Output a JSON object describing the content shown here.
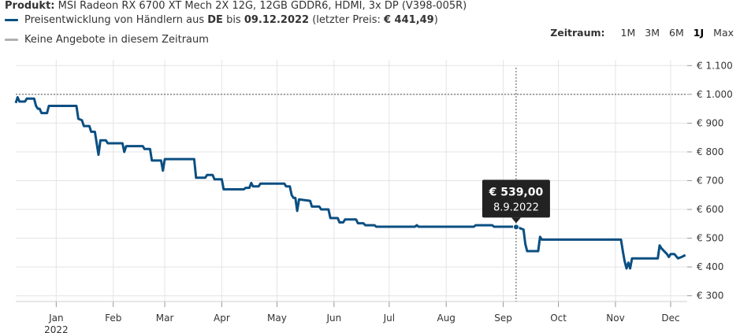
{
  "header": {
    "product_label": "Produkt:",
    "product_name": "MSI Radeon RX 6700 XT Mech 2X 12G, 12GB GDDR6, HDMI, 3x DP (V398-005R)"
  },
  "legend": {
    "series_prefix": "Preisentwicklung von Händlern aus",
    "series_country": "DE",
    "series_mid": "bis",
    "series_date": "09.12.2022",
    "series_paren_open": "(letzter Preis:",
    "series_last_price": "€ 441,49",
    "series_paren_close": ")",
    "series_color": "#0b4f82",
    "no_offers_label": "Keine Angebote in diesem Zeitraum",
    "no_offers_color": "#b0b0b0"
  },
  "range_selector": {
    "label": "Zeitraum:",
    "options": [
      "1M",
      "3M",
      "6M",
      "1J",
      "Max"
    ],
    "active": "1J"
  },
  "tooltip": {
    "price": "€ 539,00",
    "date": "8.9.2022"
  },
  "chart_data": {
    "type": "line",
    "title": "",
    "xlabel": "",
    "ylabel": "",
    "ylim": [
      280,
      1120
    ],
    "y_ticks": [
      {
        "value": 300,
        "label": "€ 300"
      },
      {
        "value": 400,
        "label": "€ 400"
      },
      {
        "value": 500,
        "label": "€ 500"
      },
      {
        "value": 600,
        "label": "€ 600"
      },
      {
        "value": 700,
        "label": "€ 700"
      },
      {
        "value": 800,
        "label": "€ 800"
      },
      {
        "value": 900,
        "label": "€ 900"
      },
      {
        "value": 1000,
        "label": "€ 1.000"
      },
      {
        "value": 1100,
        "label": "€ 1.100"
      }
    ],
    "x_range": [
      "2021-12-10",
      "2022-12-10"
    ],
    "x_ticks": [
      {
        "date": "2022-01-01",
        "label": "Jan",
        "sublabel": "2022"
      },
      {
        "date": "2022-02-01",
        "label": "Feb"
      },
      {
        "date": "2022-03-01",
        "label": "Mar"
      },
      {
        "date": "2022-04-01",
        "label": "Apr"
      },
      {
        "date": "2022-05-01",
        "label": "May"
      },
      {
        "date": "2022-06-01",
        "label": "Jun"
      },
      {
        "date": "2022-07-01",
        "label": "Jul"
      },
      {
        "date": "2022-08-01",
        "label": "Aug"
      },
      {
        "date": "2022-09-01",
        "label": "Sep"
      },
      {
        "date": "2022-10-01",
        "label": "Oct"
      },
      {
        "date": "2022-11-01",
        "label": "Nov"
      },
      {
        "date": "2022-12-01",
        "label": "Dec"
      }
    ],
    "grid": true,
    "reference_line": 1000,
    "crosshair_date": "2022-09-08",
    "highlight_point": {
      "date": "2022-09-08",
      "value": 539
    },
    "series": [
      {
        "color": "#0b4f82",
        "points": [
          [
            "2021-12-10",
            970
          ],
          [
            "2021-12-11",
            990
          ],
          [
            "2021-12-12",
            975
          ],
          [
            "2021-12-15",
            975
          ],
          [
            "2021-12-16",
            985
          ],
          [
            "2021-12-20",
            985
          ],
          [
            "2021-12-21",
            960
          ],
          [
            "2021-12-22",
            950
          ],
          [
            "2021-12-23",
            950
          ],
          [
            "2021-12-24",
            935
          ],
          [
            "2021-12-27",
            935
          ],
          [
            "2021-12-28",
            960
          ],
          [
            "2022-01-12",
            960
          ],
          [
            "2022-01-13",
            915
          ],
          [
            "2022-01-15",
            910
          ],
          [
            "2022-01-16",
            890
          ],
          [
            "2022-01-19",
            890
          ],
          [
            "2022-01-20",
            870
          ],
          [
            "2022-01-22",
            870
          ],
          [
            "2022-01-24",
            790
          ],
          [
            "2022-01-25",
            840
          ],
          [
            "2022-01-28",
            840
          ],
          [
            "2022-01-29",
            830
          ],
          [
            "2022-02-06",
            830
          ],
          [
            "2022-02-07",
            800
          ],
          [
            "2022-02-08",
            820
          ],
          [
            "2022-02-17",
            820
          ],
          [
            "2022-02-18",
            810
          ],
          [
            "2022-02-21",
            810
          ],
          [
            "2022-02-22",
            770
          ],
          [
            "2022-02-27",
            770
          ],
          [
            "2022-02-28",
            735
          ],
          [
            "2022-03-01",
            775
          ],
          [
            "2022-03-17",
            775
          ],
          [
            "2022-03-18",
            710
          ],
          [
            "2022-03-23",
            710
          ],
          [
            "2022-03-24",
            720
          ],
          [
            "2022-03-27",
            720
          ],
          [
            "2022-03-28",
            705
          ],
          [
            "2022-04-01",
            705
          ],
          [
            "2022-04-02",
            670
          ],
          [
            "2022-04-13",
            670
          ],
          [
            "2022-04-14",
            675
          ],
          [
            "2022-04-16",
            675
          ],
          [
            "2022-04-17",
            692
          ],
          [
            "2022-04-18",
            680
          ],
          [
            "2022-04-21",
            680
          ],
          [
            "2022-04-22",
            690
          ],
          [
            "2022-05-05",
            690
          ],
          [
            "2022-05-06",
            680
          ],
          [
            "2022-05-08",
            680
          ],
          [
            "2022-05-09",
            650
          ],
          [
            "2022-05-10",
            640
          ],
          [
            "2022-05-11",
            640
          ],
          [
            "2022-05-12",
            595
          ],
          [
            "2022-05-13",
            635
          ],
          [
            "2022-05-19",
            630
          ],
          [
            "2022-05-20",
            610
          ],
          [
            "2022-05-24",
            610
          ],
          [
            "2022-05-25",
            600
          ],
          [
            "2022-05-29",
            600
          ],
          [
            "2022-05-30",
            570
          ],
          [
            "2022-06-03",
            570
          ],
          [
            "2022-06-04",
            555
          ],
          [
            "2022-06-06",
            555
          ],
          [
            "2022-06-07",
            565
          ],
          [
            "2022-06-13",
            565
          ],
          [
            "2022-06-14",
            552
          ],
          [
            "2022-06-17",
            552
          ],
          [
            "2022-06-18",
            545
          ],
          [
            "2022-06-23",
            545
          ],
          [
            "2022-06-24",
            540
          ],
          [
            "2022-07-15",
            540
          ],
          [
            "2022-07-16",
            545
          ],
          [
            "2022-07-17",
            540
          ],
          [
            "2022-08-16",
            540
          ],
          [
            "2022-08-17",
            545
          ],
          [
            "2022-08-26",
            545
          ],
          [
            "2022-08-27",
            540
          ],
          [
            "2022-09-09",
            540
          ],
          [
            "2022-09-10",
            535
          ],
          [
            "2022-09-12",
            530
          ],
          [
            "2022-09-13",
            480
          ],
          [
            "2022-09-14",
            455
          ],
          [
            "2022-09-20",
            455
          ],
          [
            "2022-09-21",
            505
          ],
          [
            "2022-09-22",
            495
          ],
          [
            "2022-11-04",
            495
          ],
          [
            "2022-11-05",
            455
          ],
          [
            "2022-11-06",
            420
          ],
          [
            "2022-11-07",
            395
          ],
          [
            "2022-11-08",
            415
          ],
          [
            "2022-11-09",
            395
          ],
          [
            "2022-11-10",
            430
          ],
          [
            "2022-11-24",
            430
          ],
          [
            "2022-11-25",
            475
          ],
          [
            "2022-11-26",
            465
          ],
          [
            "2022-11-29",
            445
          ],
          [
            "2022-11-30",
            435
          ],
          [
            "2022-12-01",
            445
          ],
          [
            "2022-12-03",
            445
          ],
          [
            "2022-12-05",
            430
          ],
          [
            "2022-12-07",
            435
          ],
          [
            "2022-12-09",
            441.49
          ]
        ]
      }
    ]
  }
}
